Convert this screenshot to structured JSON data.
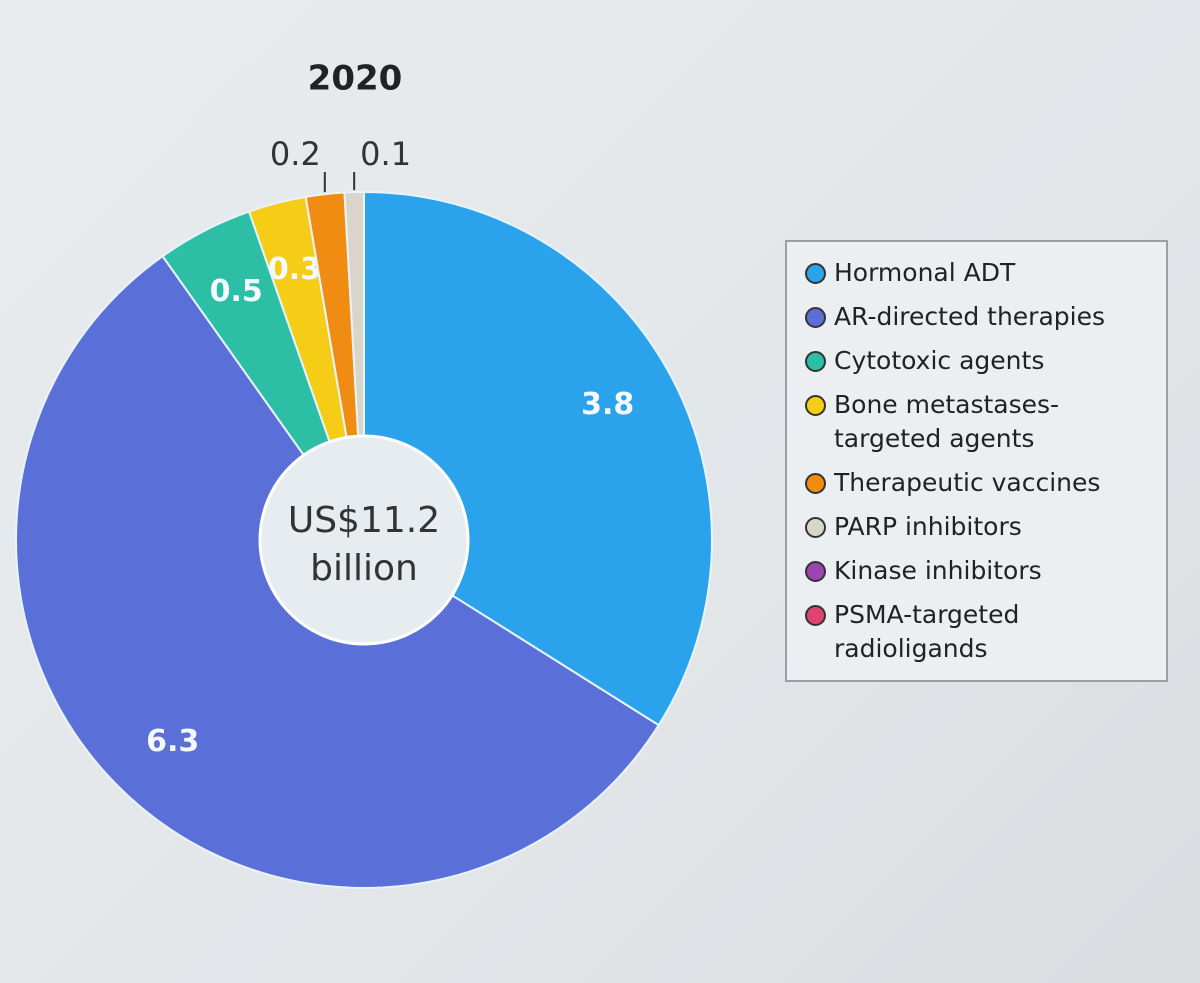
{
  "chart_data": {
    "type": "donut",
    "title": "2020",
    "center_label": [
      "US$11.2",
      "billion"
    ],
    "categories": [
      "Hormonal ADT",
      "AR-directed therapies",
      "Cytotoxic agents",
      "Bone metastases-targeted agents",
      "Therapeutic vaccines",
      "PARP inhibitors",
      "Kinase inhibitors",
      "PSMA-targeted radioligands"
    ],
    "values": [
      3.8,
      6.3,
      0.5,
      0.3,
      0.2,
      0.1,
      0,
      0
    ],
    "colors": [
      "#2ba3ec",
      "#5b6fd8",
      "#2cbfa5",
      "#f5cc16",
      "#f08c12",
      "#d9d5c9",
      "#a043b2",
      "#e0436f"
    ]
  }
}
